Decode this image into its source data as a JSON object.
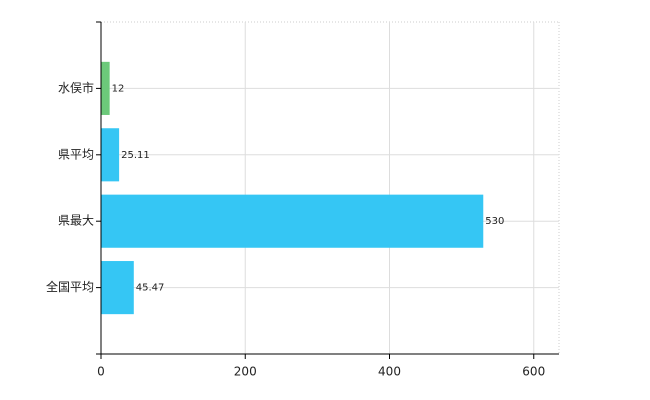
{
  "chart_data": {
    "type": "hbar",
    "categories": [
      "水俣市",
      "県平均",
      "県最大",
      "全国平均"
    ],
    "values": [
      12,
      25.11,
      530,
      45.47
    ],
    "colors": [
      "#6cc97a",
      "#35c6f4",
      "#35c6f4",
      "#35c6f4"
    ],
    "xlim": [
      0,
      635
    ],
    "xticks": [
      0,
      200,
      400,
      600
    ],
    "grid": true
  }
}
